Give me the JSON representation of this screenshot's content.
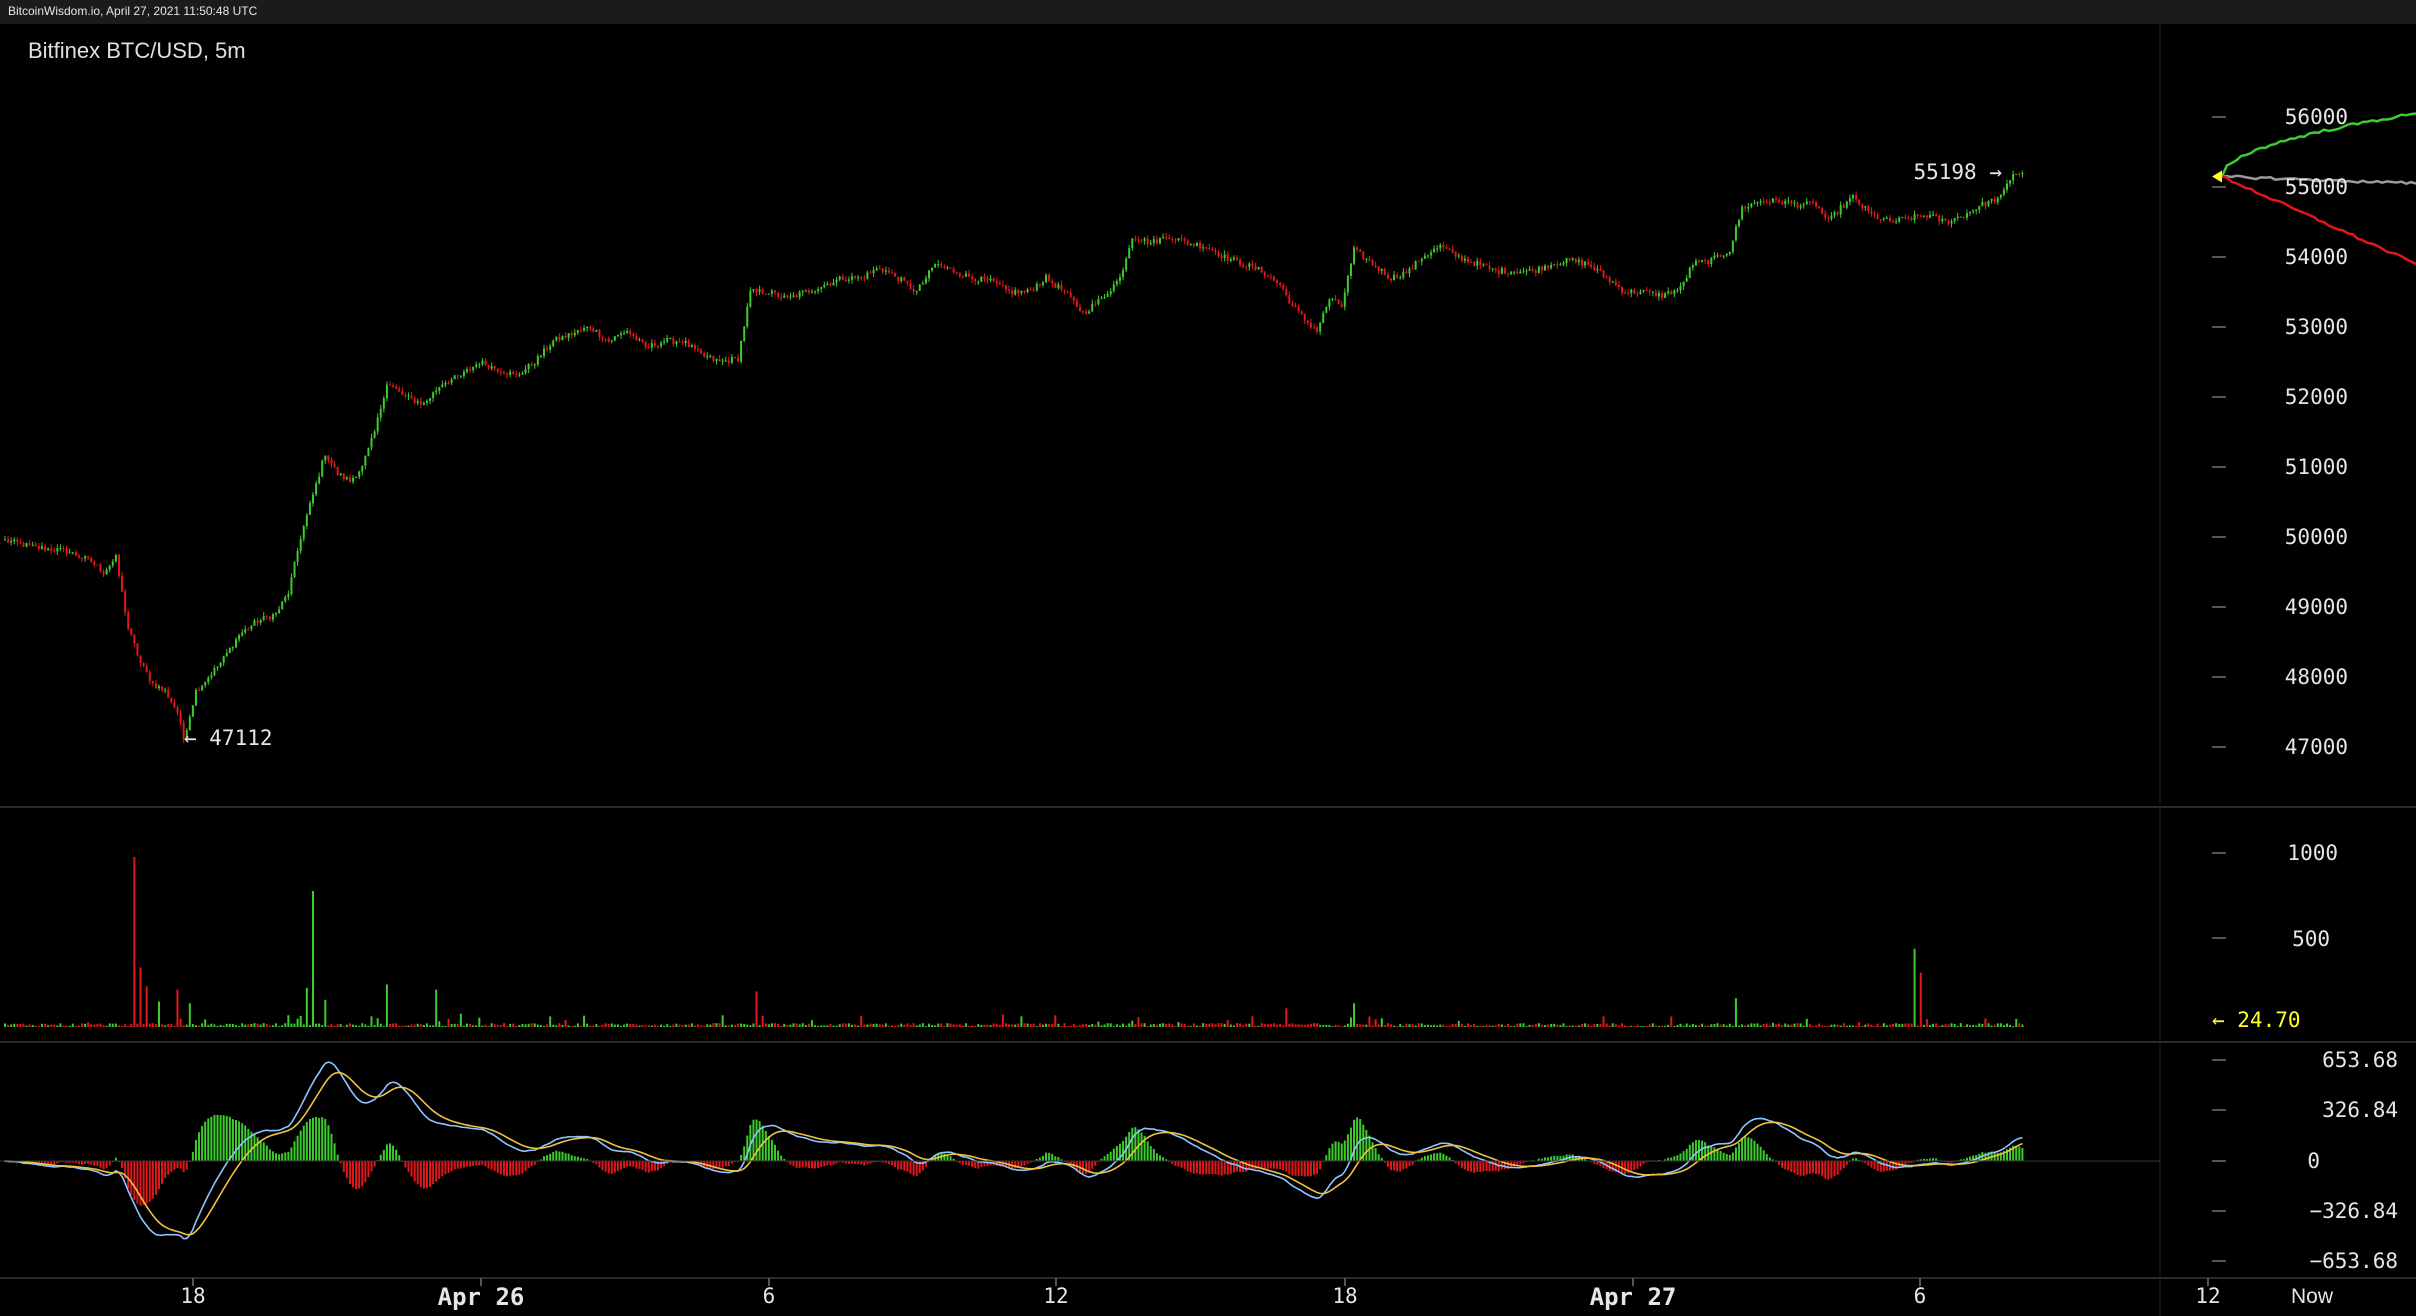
{
  "header": {
    "site_caption": "BitcoinWisdom.io, April 27, 2021 11:50:48 UTC"
  },
  "chart_data": {
    "type": "candlestick",
    "title": "Bitfinex BTC/USD, 5m",
    "price_axis": {
      "ticks": [
        "56000",
        "55000",
        "54000",
        "53000",
        "52000",
        "51000",
        "50000",
        "49000",
        "48000",
        "47000"
      ],
      "ylim": [
        46300,
        57100
      ]
    },
    "volume_axis": {
      "ticks": [
        "1000",
        "500"
      ],
      "current_volume_label": "← 24.70"
    },
    "macd_axis": {
      "ticks": [
        "653.68",
        "326.84",
        "0",
        "−326.84",
        "−653.68"
      ]
    },
    "x_ticks": [
      "18",
      "Apr 26",
      "6",
      "12",
      "18",
      "Apr 27",
      "6",
      "12",
      "Now"
    ],
    "annotations": {
      "low_label": "← 47112",
      "high_label": "55198 →",
      "low_value": 47112,
      "high_value": 55198
    },
    "close_path": [
      [
        0,
        49950
      ],
      [
        10,
        49850
      ],
      [
        20,
        49800
      ],
      [
        28,
        49650
      ],
      [
        32,
        49500
      ],
      [
        36,
        49700
      ],
      [
        40,
        48700
      ],
      [
        44,
        48200
      ],
      [
        48,
        47900
      ],
      [
        52,
        47800
      ],
      [
        56,
        47500
      ],
      [
        58,
        47112
      ],
      [
        62,
        47800
      ],
      [
        66,
        48000
      ],
      [
        70,
        48200
      ],
      [
        76,
        48600
      ],
      [
        82,
        48800
      ],
      [
        88,
        48900
      ],
      [
        92,
        49200
      ],
      [
        96,
        50000
      ],
      [
        100,
        50600
      ],
      [
        104,
        51200
      ],
      [
        108,
        50900
      ],
      [
        112,
        50800
      ],
      [
        116,
        51000
      ],
      [
        120,
        51500
      ],
      [
        124,
        52200
      ],
      [
        130,
        52000
      ],
      [
        136,
        51900
      ],
      [
        142,
        52200
      ],
      [
        148,
        52300
      ],
      [
        154,
        52500
      ],
      [
        160,
        52400
      ],
      [
        166,
        52300
      ],
      [
        172,
        52500
      ],
      [
        178,
        52800
      ],
      [
        184,
        52900
      ],
      [
        190,
        53000
      ],
      [
        196,
        52800
      ],
      [
        202,
        52950
      ],
      [
        208,
        52700
      ],
      [
        214,
        52800
      ],
      [
        220,
        52800
      ],
      [
        226,
        52600
      ],
      [
        232,
        52500
      ],
      [
        238,
        52550
      ],
      [
        242,
        53500
      ],
      [
        248,
        53500
      ],
      [
        254,
        53400
      ],
      [
        260,
        53500
      ],
      [
        266,
        53600
      ],
      [
        272,
        53700
      ],
      [
        278,
        53700
      ],
      [
        284,
        53850
      ],
      [
        290,
        53700
      ],
      [
        296,
        53500
      ],
      [
        302,
        53900
      ],
      [
        308,
        53800
      ],
      [
        314,
        53700
      ],
      [
        320,
        53650
      ],
      [
        326,
        53500
      ],
      [
        332,
        53500
      ],
      [
        338,
        53700
      ],
      [
        344,
        53500
      ],
      [
        350,
        53200
      ],
      [
        356,
        53400
      ],
      [
        362,
        53700
      ],
      [
        366,
        54300
      ],
      [
        372,
        54200
      ],
      [
        378,
        54300
      ],
      [
        384,
        54200
      ],
      [
        390,
        54150
      ],
      [
        396,
        54000
      ],
      [
        402,
        53900
      ],
      [
        408,
        53800
      ],
      [
        414,
        53600
      ],
      [
        418,
        53300
      ],
      [
        422,
        53100
      ],
      [
        426,
        52950
      ],
      [
        430,
        53400
      ],
      [
        434,
        53300
      ],
      [
        438,
        54100
      ],
      [
        444,
        53900
      ],
      [
        450,
        53700
      ],
      [
        456,
        53800
      ],
      [
        460,
        54000
      ],
      [
        466,
        54150
      ],
      [
        472,
        54000
      ],
      [
        478,
        53900
      ],
      [
        484,
        53800
      ],
      [
        490,
        53800
      ],
      [
        496,
        53800
      ],
      [
        502,
        53900
      ],
      [
        508,
        53950
      ],
      [
        514,
        53900
      ],
      [
        520,
        53700
      ],
      [
        526,
        53500
      ],
      [
        532,
        53500
      ],
      [
        538,
        53450
      ],
      [
        544,
        53550
      ],
      [
        548,
        53900
      ],
      [
        554,
        53950
      ],
      [
        560,
        54100
      ],
      [
        564,
        54700
      ],
      [
        570,
        54800
      ],
      [
        576,
        54800
      ],
      [
        582,
        54750
      ],
      [
        588,
        54750
      ],
      [
        592,
        54500
      ],
      [
        596,
        54700
      ],
      [
        600,
        54850
      ],
      [
        606,
        54600
      ],
      [
        612,
        54500
      ],
      [
        618,
        54550
      ],
      [
        624,
        54600
      ],
      [
        630,
        54500
      ],
      [
        636,
        54600
      ],
      [
        642,
        54750
      ],
      [
        648,
        54850
      ],
      [
        652,
        55198
      ]
    ],
    "volume_spikes": [
      [
        42,
        1000
      ],
      [
        44,
        350
      ],
      [
        46,
        240
      ],
      [
        56,
        220
      ],
      [
        100,
        800
      ],
      [
        124,
        250
      ],
      [
        140,
        220
      ],
      [
        244,
        210
      ],
      [
        562,
        170
      ],
      [
        620,
        460
      ],
      [
        622,
        320
      ],
      [
        438,
        140
      ],
      [
        416,
        110
      ],
      [
        98,
        230
      ],
      [
        104,
        160
      ],
      [
        50,
        150
      ],
      [
        60,
        140
      ]
    ],
    "projection": {
      "from_price": 55150,
      "green_end": 56050,
      "grey_end": 55050,
      "red_end": 53900
    }
  }
}
